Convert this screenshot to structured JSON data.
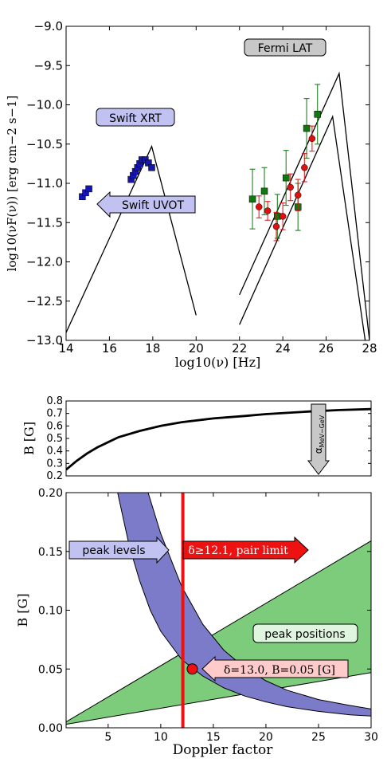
{
  "chart_data": [
    {
      "type": "scatter",
      "xlabel": "log10(ν) [Hz]",
      "ylabel": "log10(νF(ν)) [erg cm−2 s−1]",
      "xlim": [
        14,
        28
      ],
      "ylim": [
        -13.0,
        -9.0
      ],
      "y_inverted": true,
      "xticks": [
        "14",
        "16",
        "18",
        "20",
        "22",
        "24",
        "26",
        "28"
      ],
      "yticks": [
        "−9.0",
        "−9.5",
        "−10.0",
        "−10.5",
        "−11.0",
        "−11.5",
        "−12.0",
        "−12.5",
        "−13.0"
      ],
      "annotations": [
        {
          "text": "Fermi LAT",
          "style": "grey-box"
        },
        {
          "text": "Swift XRT",
          "style": "blue-box"
        },
        {
          "text": "Swift UVOT",
          "style": "blue-left-arrow"
        }
      ],
      "series": [
        {
          "type": "scatter",
          "marker": "square",
          "color": "#1515b5",
          "points": [
            [
              14.75,
              -11.17
            ],
            [
              14.9,
              -11.12
            ],
            [
              15.05,
              -11.07
            ],
            [
              17.0,
              -10.95
            ],
            [
              17.1,
              -10.9
            ],
            [
              17.2,
              -10.85
            ],
            [
              17.3,
              -10.8
            ],
            [
              17.4,
              -10.75
            ],
            [
              17.5,
              -10.7
            ],
            [
              17.65,
              -10.7
            ],
            [
              17.8,
              -10.74
            ],
            [
              17.95,
              -10.8
            ]
          ]
        },
        {
          "type": "scatter",
          "marker": "square",
          "color": "#117711",
          "points": [
            [
              22.6,
              -11.2,
              0.38
            ],
            [
              23.15,
              -11.1,
              0.3
            ],
            [
              24.15,
              -10.93,
              0.35
            ],
            [
              23.75,
              -11.42,
              0.28
            ],
            [
              24.7,
              -11.3,
              0.3
            ],
            [
              25.1,
              -10.3,
              0.38
            ],
            [
              25.6,
              -10.12,
              0.38
            ]
          ]
        },
        {
          "type": "scatter",
          "marker": "circle",
          "color": "#dd1111",
          "points": [
            [
              22.9,
              -11.3,
              0.14
            ],
            [
              23.3,
              -11.35,
              0.12
            ],
            [
              23.7,
              -11.55,
              0.18
            ],
            [
              24.0,
              -11.42,
              0.17
            ],
            [
              24.35,
              -11.05,
              0.17
            ],
            [
              24.7,
              -11.15,
              0.2
            ],
            [
              25.0,
              -10.8,
              0.18
            ],
            [
              25.35,
              -10.43,
              0.16
            ]
          ]
        },
        {
          "type": "line",
          "color": "#000000",
          "points": [
            [
              14.0,
              -12.9
            ],
            [
              17.95,
              -10.53
            ],
            [
              20.0,
              -12.68
            ]
          ]
        },
        {
          "type": "line",
          "color": "#000000",
          "points": [
            [
              22.0,
              -12.8
            ],
            [
              26.3,
              -10.15
            ],
            [
              27.8,
              -13.0
            ]
          ]
        },
        {
          "type": "line",
          "color": "#000000",
          "points": [
            [
              22.0,
              -12.42
            ],
            [
              26.6,
              -9.6
            ],
            [
              28.0,
              -13.0
            ]
          ]
        }
      ]
    },
    {
      "type": "line",
      "xlabel": "",
      "ylabel": "B [G]",
      "xlim": [
        1,
        30
      ],
      "ylim": [
        0.2,
        0.8
      ],
      "yticks": [
        "0.2",
        "0.3",
        "0.4",
        "0.5",
        "0.6",
        "0.7",
        "0.8"
      ],
      "annotations": [
        {
          "text": "α MeV−GeV",
          "main": "α",
          "sub": "MeV−GeV",
          "style": "grey-down-arrow",
          "x": 25
        }
      ],
      "series": [
        {
          "type": "line",
          "color": "#000000",
          "points": [
            [
              1,
              0.25
            ],
            [
              2,
              0.32
            ],
            [
              3,
              0.38
            ],
            [
              4,
              0.43
            ],
            [
              5,
              0.47
            ],
            [
              6,
              0.51
            ],
            [
              8,
              0.56
            ],
            [
              10,
              0.6
            ],
            [
              12,
              0.63
            ],
            [
              15,
              0.66
            ],
            [
              18,
              0.68
            ],
            [
              20,
              0.695
            ],
            [
              24,
              0.715
            ],
            [
              27,
              0.727
            ],
            [
              30,
              0.735
            ]
          ]
        }
      ]
    },
    {
      "type": "area",
      "xlabel": "Doppler factor",
      "ylabel": "B [G]",
      "xlim": [
        1,
        30
      ],
      "ylim": [
        0.0,
        0.2
      ],
      "xticks": [
        "5",
        "10",
        "15",
        "20",
        "25",
        "30"
      ],
      "yticks": [
        "0.00",
        "0.05",
        "0.10",
        "0.15",
        "0.20"
      ],
      "colors": {
        "peak_levels": "#7b7bc9",
        "peak_positions": "#7ccc7c",
        "pair_limit": "#ee1111"
      },
      "annotations": [
        {
          "text": "peak levels",
          "style": "blue-right-arrow"
        },
        {
          "text": "δ≥12.1, pair limit",
          "style": "red-right-arrow"
        },
        {
          "text": "peak positions",
          "style": "green-box"
        },
        {
          "text": "δ=13.0, B=0.05 [G]",
          "style": "red-left-arrow"
        }
      ],
      "series": [
        {
          "type": "band",
          "color": "#7b7bc9",
          "upper": [
            [
              8.8,
              0.2
            ],
            [
              10,
              0.165
            ],
            [
              12,
              0.12
            ],
            [
              14,
              0.088
            ],
            [
              16,
              0.066
            ],
            [
              18,
              0.051
            ],
            [
              20,
              0.04
            ],
            [
              22,
              0.032
            ],
            [
              25,
              0.024
            ],
            [
              28,
              0.019
            ],
            [
              30,
              0.016
            ]
          ],
          "lower": [
            [
              5.9,
              0.2
            ],
            [
              7,
              0.155
            ],
            [
              8,
              0.125
            ],
            [
              9,
              0.1
            ],
            [
              10,
              0.082
            ],
            [
              12,
              0.058
            ],
            [
              14,
              0.044
            ],
            [
              16,
              0.034
            ],
            [
              18,
              0.027
            ],
            [
              20,
              0.022
            ],
            [
              22,
              0.018
            ],
            [
              25,
              0.014
            ],
            [
              28,
              0.011
            ],
            [
              30,
              0.01
            ]
          ]
        },
        {
          "type": "band",
          "color": "#7ccc7c",
          "upper": [
            [
              1,
              0.005
            ],
            [
              30,
              0.159
            ]
          ],
          "lower": [
            [
              1,
              0.003
            ],
            [
              30,
              0.047
            ]
          ]
        },
        {
          "type": "vline",
          "color": "#ee1111",
          "x": 12.1
        },
        {
          "type": "point",
          "color": "#ee1111",
          "points": [
            [
              13.0,
              0.05
            ]
          ]
        }
      ]
    }
  ]
}
